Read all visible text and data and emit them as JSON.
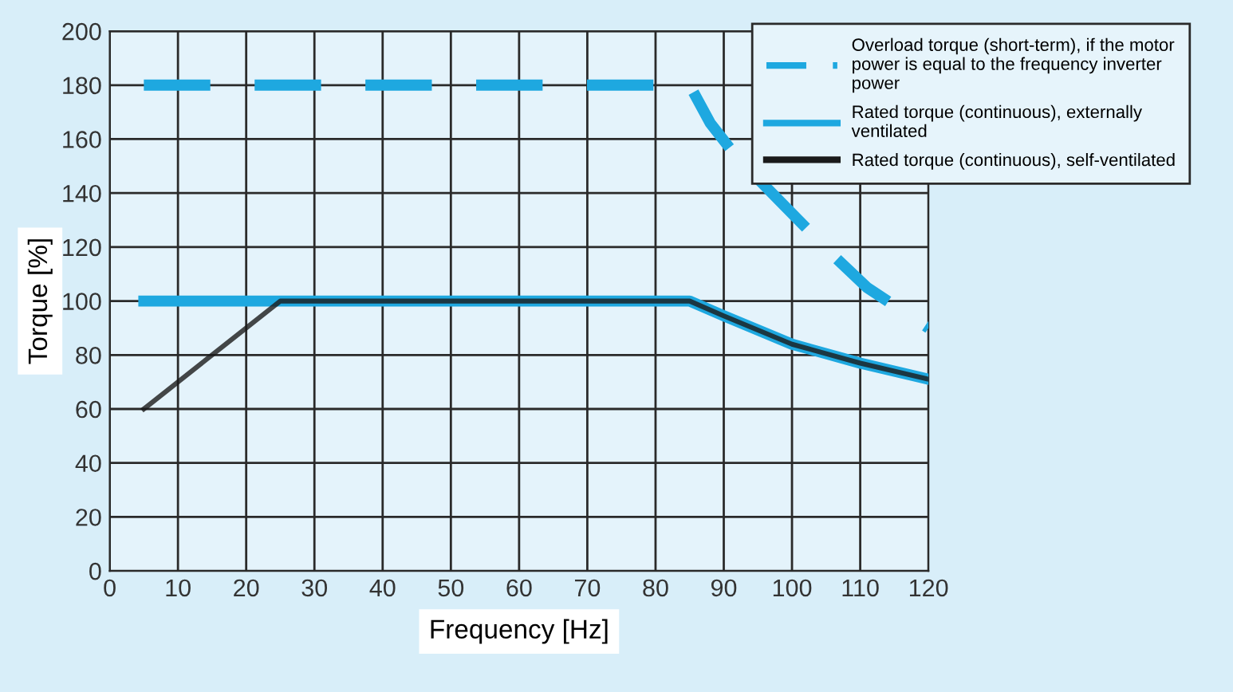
{
  "chart_data": {
    "type": "line",
    "xlabel": "Frequency [Hz]",
    "ylabel": "Torque [%]",
    "xlim": [
      0,
      120
    ],
    "xticks": [
      0,
      10,
      20,
      30,
      40,
      50,
      60,
      70,
      80,
      90,
      100,
      110,
      120
    ],
    "ylim": [
      0,
      200
    ],
    "yticks": [
      0,
      20,
      40,
      60,
      80,
      100,
      120,
      140,
      160,
      180,
      200
    ],
    "grid": true,
    "legend": "top right",
    "marker": "none",
    "series": [
      {
        "name": "Overload torque (short-term), if the motor power is equal to the frequency inverter power",
        "color": "#1ea8e0",
        "line_style": "dashed",
        "x": [
          5,
          85,
          88,
          92,
          106,
          111,
          120
        ],
        "values": [
          180,
          180,
          166,
          153,
          117,
          105,
          90
        ]
      },
      {
        "name": "Rated torque (continuous), externally ventilated",
        "color": "#1ea8e0",
        "line_style": "solid",
        "x": [
          5,
          85,
          90,
          100,
          110,
          120
        ],
        "values": [
          100,
          100,
          94.5,
          84,
          77,
          71
        ]
      },
      {
        "name": "Rated torque (continuous), self-ventilated",
        "color": "#1a1a1a",
        "line_style": "solid",
        "x": [
          5,
          25,
          85,
          90,
          100,
          110,
          120
        ],
        "values": [
          60,
          100,
          100,
          94.5,
          84,
          77,
          71
        ]
      }
    ]
  }
}
